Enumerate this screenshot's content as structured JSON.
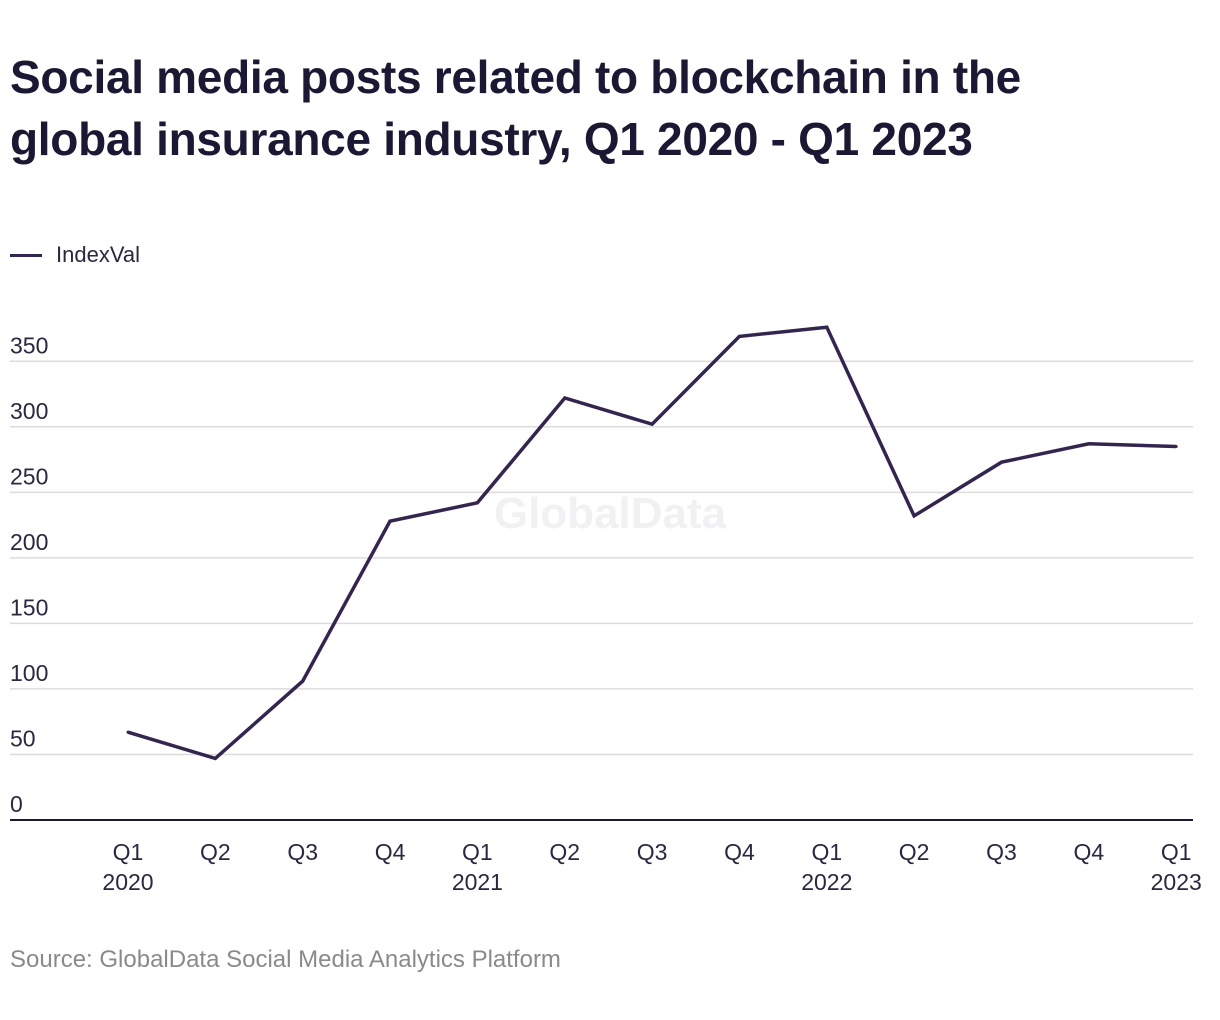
{
  "chart_data": {
    "type": "line",
    "title_lines": [
      "Social media posts related to blockchain in the",
      "global insurance industry, Q1 2020 - Q1 2023"
    ],
    "categories": [
      [
        "Q1",
        "2020"
      ],
      [
        "Q2"
      ],
      [
        "Q3"
      ],
      [
        "Q4"
      ],
      [
        "Q1",
        "2021"
      ],
      [
        "Q2"
      ],
      [
        "Q3"
      ],
      [
        "Q4"
      ],
      [
        "Q1",
        "2022"
      ],
      [
        "Q2"
      ],
      [
        "Q3"
      ],
      [
        "Q4"
      ],
      [
        "Q1",
        "2023"
      ]
    ],
    "series": [
      {
        "name": "IndexVal",
        "color": "#34254f",
        "values": [
          67,
          47,
          106,
          228,
          242,
          322,
          302,
          369,
          376,
          232,
          273,
          287,
          285
        ]
      }
    ],
    "yticks": [
      0,
      50,
      100,
      150,
      200,
      250,
      300,
      350
    ],
    "ylim": [
      0,
      350
    ],
    "grid": true,
    "legend_position": "top-left",
    "watermark": "GlobalData"
  },
  "source": "Source: GlobalData Social Media Analytics Platform",
  "colors": {
    "line": "#34254f",
    "grid": "#dcdcdc",
    "axis": "#1a1833",
    "title": "#1a1833",
    "source": "#8a8a8a"
  }
}
